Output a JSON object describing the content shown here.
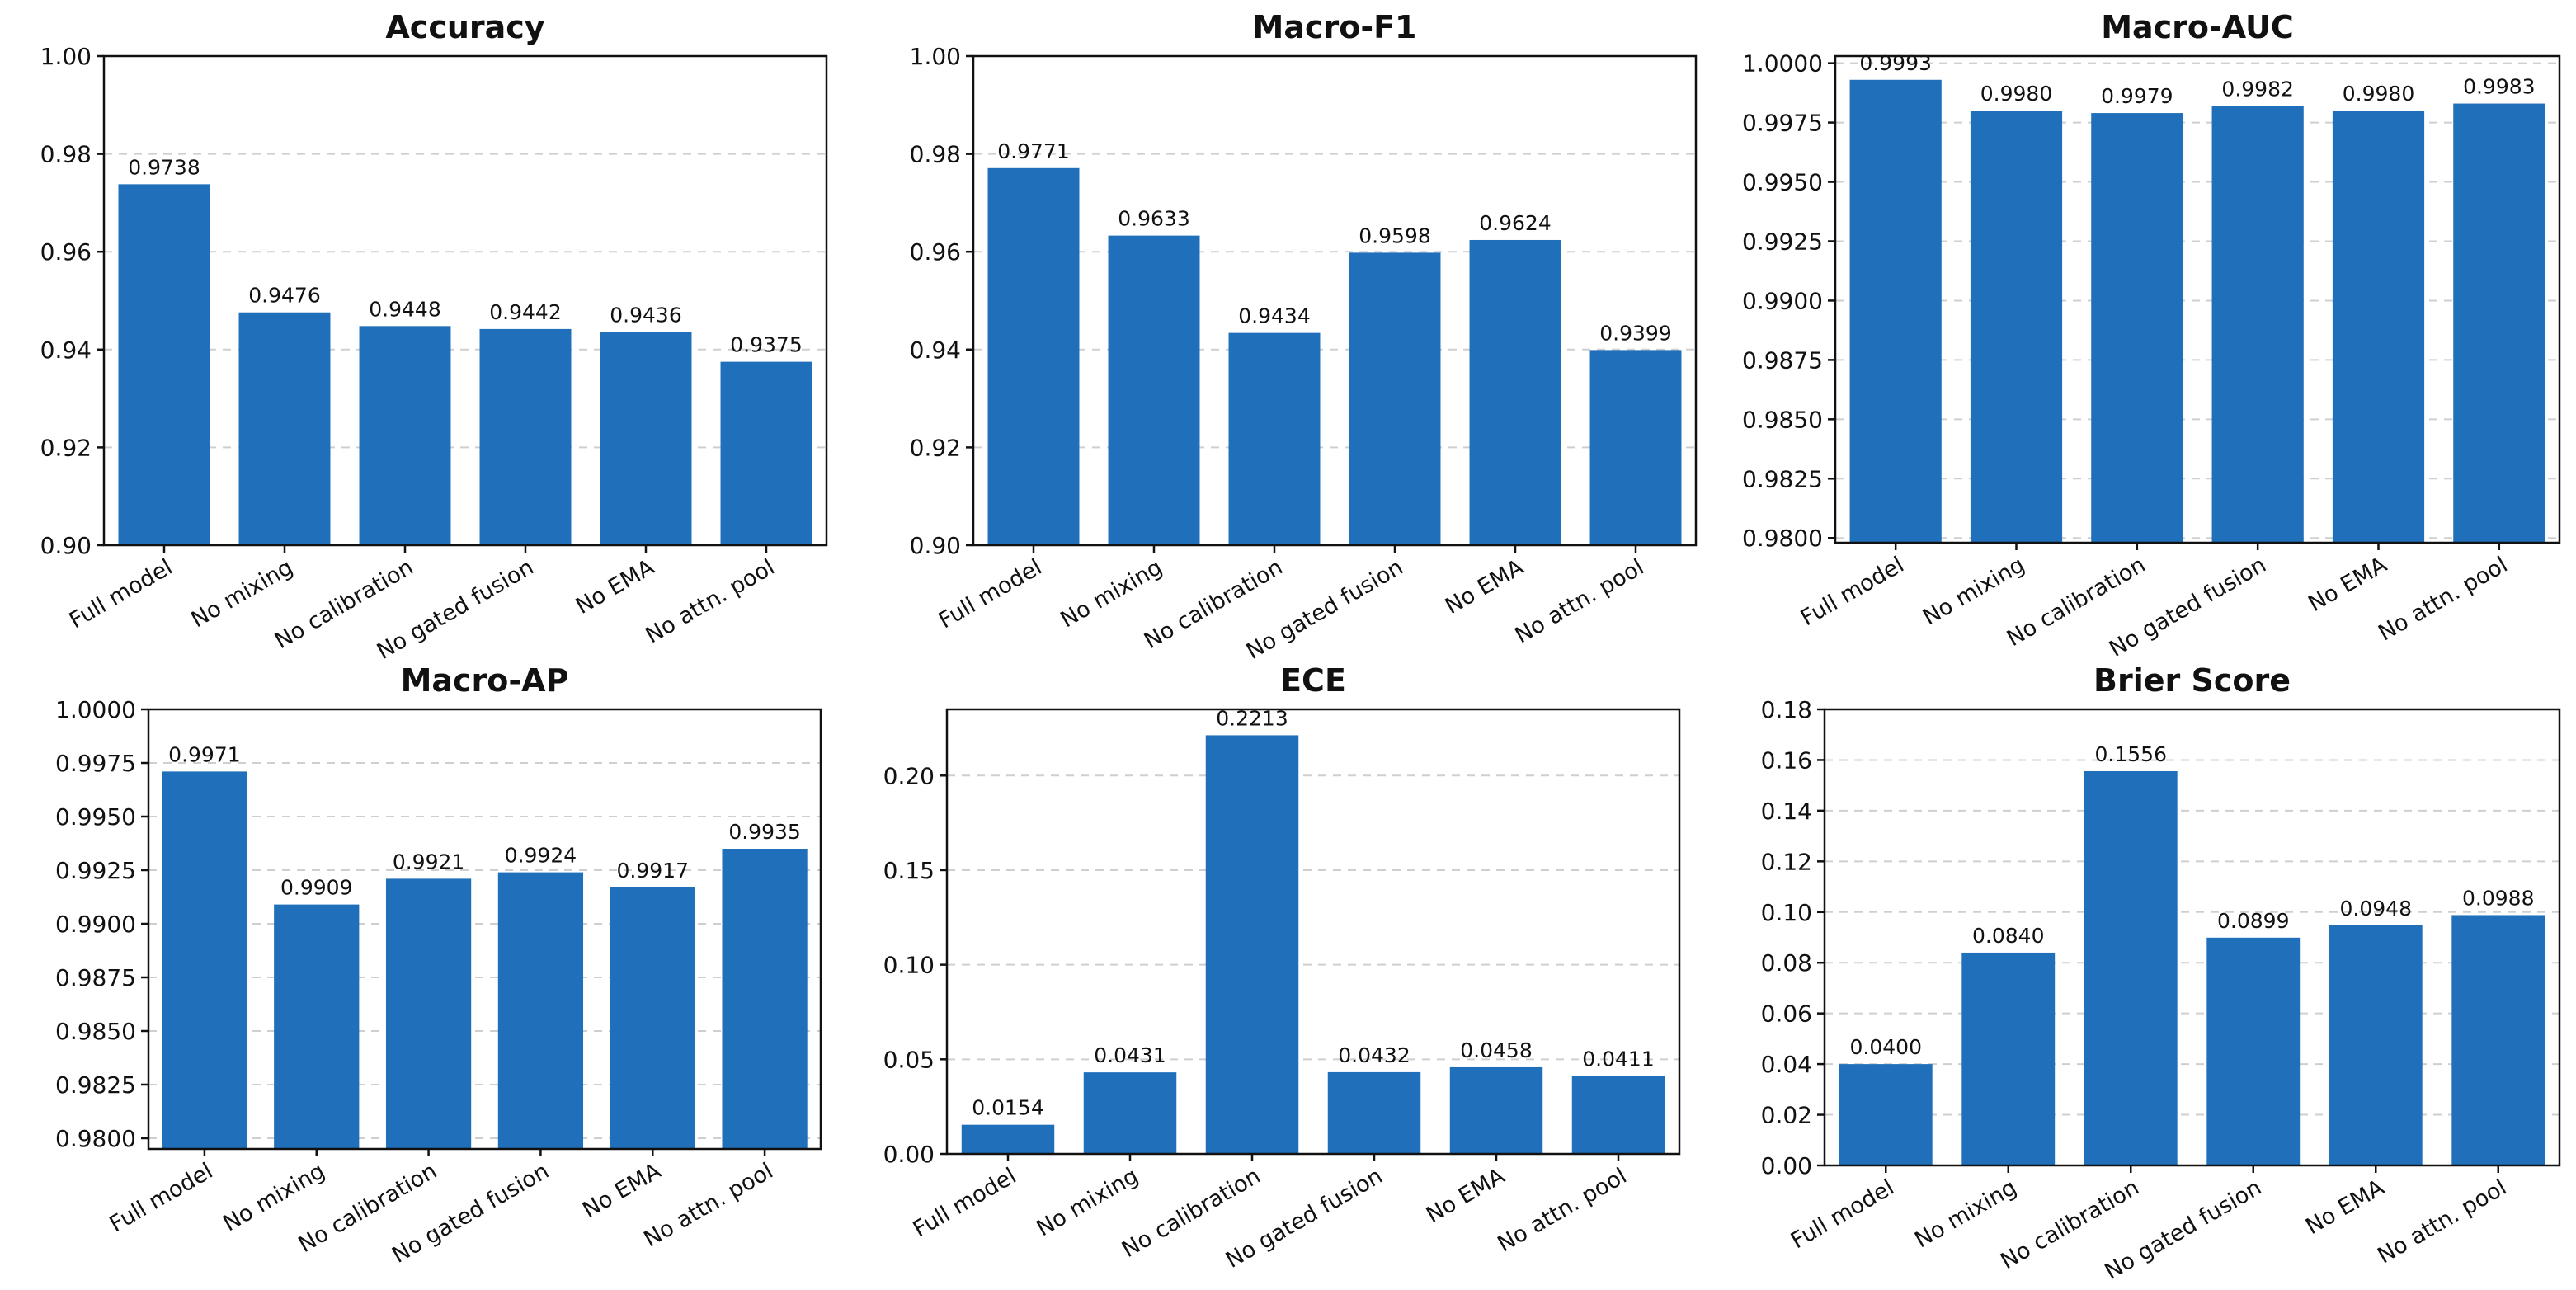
{
  "colors": {
    "bar": "#1f6fbb",
    "grid": "#cfcfcf",
    "axis": "#111111"
  },
  "chart_data": [
    {
      "type": "bar",
      "title": "Accuracy",
      "categories": [
        "Full model",
        "No mixing",
        "No calibration",
        "No gated fusion",
        "No EMA",
        "No attn. pool"
      ],
      "values": [
        0.9738,
        0.9476,
        0.9448,
        0.9442,
        0.9436,
        0.9375
      ],
      "value_labels": [
        "0.9738",
        "0.9476",
        "0.9448",
        "0.9442",
        "0.9436",
        "0.9375"
      ],
      "ylim": [
        0.9,
        1.0
      ],
      "yticks": [
        0.9,
        0.92,
        0.94,
        0.96,
        0.98,
        1.0
      ],
      "ytick_labels": [
        "0.90",
        "0.92",
        "0.94",
        "0.96",
        "0.98",
        "1.00"
      ],
      "xlabel": "",
      "ylabel": "",
      "grid": "y-dashed",
      "legend": "none"
    },
    {
      "type": "bar",
      "title": "Macro-F1",
      "categories": [
        "Full model",
        "No mixing",
        "No calibration",
        "No gated fusion",
        "No EMA",
        "No attn. pool"
      ],
      "values": [
        0.9771,
        0.9633,
        0.9434,
        0.9598,
        0.9624,
        0.9399
      ],
      "value_labels": [
        "0.9771",
        "0.9633",
        "0.9434",
        "0.9598",
        "0.9624",
        "0.9399"
      ],
      "ylim": [
        0.9,
        1.0
      ],
      "yticks": [
        0.9,
        0.92,
        0.94,
        0.96,
        0.98,
        1.0
      ],
      "ytick_labels": [
        "0.90",
        "0.92",
        "0.94",
        "0.96",
        "0.98",
        "1.00"
      ],
      "xlabel": "",
      "ylabel": "",
      "grid": "y-dashed",
      "legend": "none"
    },
    {
      "type": "bar",
      "title": "Macro-AUC",
      "categories": [
        "Full model",
        "No mixing",
        "No calibration",
        "No gated fusion",
        "No EMA",
        "No attn. pool"
      ],
      "values": [
        0.9993,
        0.998,
        0.9979,
        0.9982,
        0.998,
        0.9983
      ],
      "value_labels": [
        "0.9993",
        "0.9980",
        "0.9979",
        "0.9982",
        "0.9980",
        "0.9983"
      ],
      "ylim": [
        0.9798,
        1.0003
      ],
      "yticks": [
        0.98,
        0.9825,
        0.985,
        0.9875,
        0.99,
        0.9925,
        0.995,
        0.9975,
        1.0
      ],
      "ytick_labels": [
        "0.9800",
        "0.9825",
        "0.9850",
        "0.9875",
        "0.9900",
        "0.9925",
        "0.9950",
        "0.9975",
        "1.0000"
      ],
      "xlabel": "",
      "ylabel": "",
      "grid": "y-dashed",
      "legend": "none"
    },
    {
      "type": "bar",
      "title": "Macro-AP",
      "categories": [
        "Full model",
        "No mixing",
        "No calibration",
        "No gated fusion",
        "No EMA",
        "No attn. pool"
      ],
      "values": [
        0.9971,
        0.9909,
        0.9921,
        0.9924,
        0.9917,
        0.9935
      ],
      "value_labels": [
        "0.9971",
        "0.9909",
        "0.9921",
        "0.9924",
        "0.9917",
        "0.9935"
      ],
      "ylim": [
        0.9795,
        1.0
      ],
      "yticks": [
        0.98,
        0.9825,
        0.985,
        0.9875,
        0.99,
        0.9925,
        0.995,
        0.9975,
        1.0
      ],
      "ytick_labels": [
        "0.9800",
        "0.9825",
        "0.9850",
        "0.9875",
        "0.9900",
        "0.9925",
        "0.9950",
        "0.9975",
        "1.0000"
      ],
      "xlabel": "",
      "ylabel": "",
      "grid": "y-dashed",
      "legend": "none"
    },
    {
      "type": "bar",
      "title": "ECE",
      "categories": [
        "Full model",
        "No mixing",
        "No calibration",
        "No gated fusion",
        "No EMA",
        "No attn. pool"
      ],
      "values": [
        0.0154,
        0.0431,
        0.2213,
        0.0432,
        0.0458,
        0.0411
      ],
      "value_labels": [
        "0.0154",
        "0.0431",
        "0.2213",
        "0.0432",
        "0.0458",
        "0.0411"
      ],
      "ylim": [
        0,
        0.235
      ],
      "yticks": [
        0,
        0.05,
        0.1,
        0.15,
        0.2
      ],
      "ytick_labels": [
        "0.00",
        "0.05",
        "0.10",
        "0.15",
        "0.20"
      ],
      "xlabel": "",
      "ylabel": "",
      "grid": "y-dashed",
      "legend": "none"
    },
    {
      "type": "bar",
      "title": "Brier Score",
      "categories": [
        "Full model",
        "No mixing",
        "No calibration",
        "No gated fusion",
        "No EMA",
        "No attn. pool"
      ],
      "values": [
        0.04,
        0.084,
        0.1556,
        0.0899,
        0.0948,
        0.0988
      ],
      "value_labels": [
        "0.0400",
        "0.0840",
        "0.1556",
        "0.0899",
        "0.0948",
        "0.0988"
      ],
      "ylim": [
        0,
        0.18
      ],
      "yticks": [
        0,
        0.02,
        0.04,
        0.06,
        0.08,
        0.1,
        0.12,
        0.14,
        0.16,
        0.18
      ],
      "ytick_labels": [
        "0.00",
        "0.02",
        "0.04",
        "0.06",
        "0.08",
        "0.10",
        "0.12",
        "0.14",
        "0.16",
        "0.18"
      ],
      "xlabel": "",
      "ylabel": "",
      "grid": "y-dashed",
      "legend": "none"
    }
  ]
}
